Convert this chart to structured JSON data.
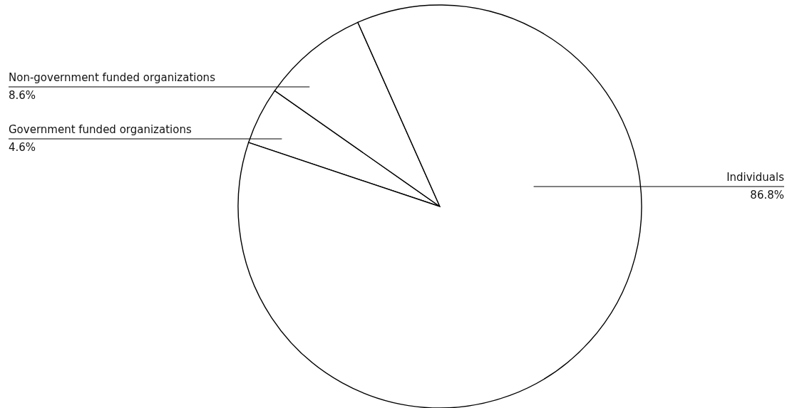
{
  "chart_data": {
    "type": "pie",
    "categories": [
      "Government funded organizations",
      "Non-government funded organizations",
      "Individuals"
    ],
    "values": [
      4.6,
      8.6,
      86.8
    ],
    "value_labels": [
      "4.6%",
      "8.6%",
      "86.8%"
    ],
    "colors": [
      "#ffffff",
      "#ffffff",
      "#ffffff"
    ]
  }
}
